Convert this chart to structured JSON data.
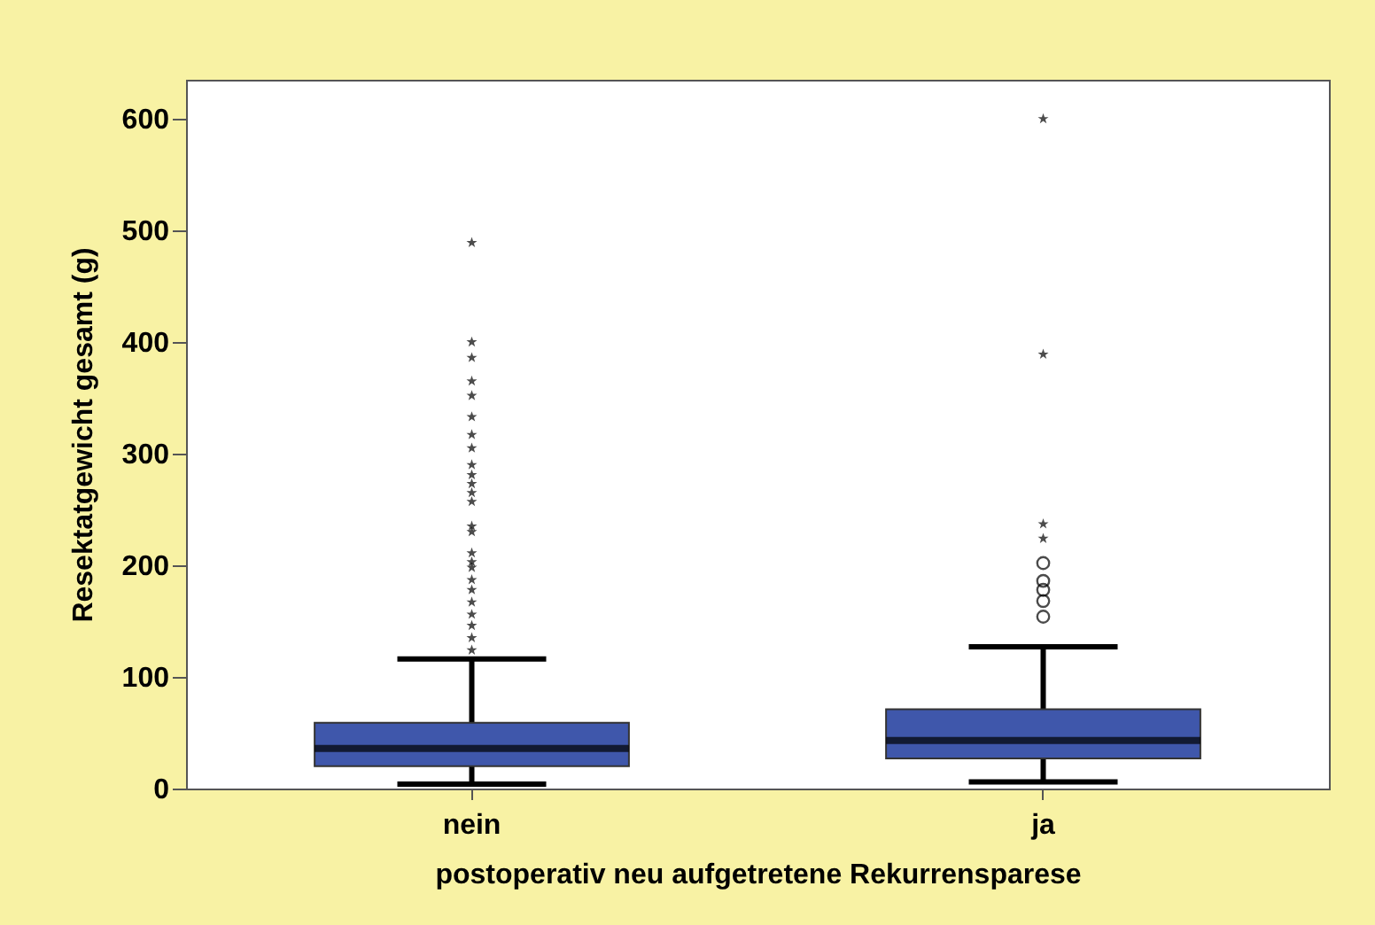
{
  "chart_data": {
    "type": "box",
    "xlabel": "postoperativ neu aufgetretene Rekurrensparese",
    "ylabel": "Resektatgewicht gesamt (g)",
    "categories": [
      "nein",
      "ja"
    ],
    "color": "#3f57ab",
    "ylim": [
      0,
      635
    ],
    "yticks": [
      0,
      100,
      200,
      300,
      400,
      500,
      600
    ],
    "grid": false,
    "boxes": [
      {
        "low": 4,
        "q1": 20,
        "median": 36,
        "q3": 59,
        "high": 116
      },
      {
        "low": 6,
        "q1": 27,
        "median": 43,
        "q3": 71,
        "high": 127,
        "outliers": [
          154,
          168,
          178,
          186,
          202
        ]
      }
    ],
    "series": [
      {
        "type": "scatter",
        "marker": "star",
        "color": "#000000",
        "x": [
          "nein",
          "nein",
          "nein",
          "nein",
          "nein",
          "nein",
          "nein",
          "nein",
          "nein",
          "nein",
          "nein",
          "nein",
          "nein",
          "nein",
          "nein",
          "nein",
          "nein",
          "nein",
          "nein",
          "nein",
          "nein",
          "nein",
          "nein",
          "nein",
          "nein",
          "ja",
          "ja",
          "ja",
          "ja"
        ],
        "values": [
          489,
          400,
          386,
          365,
          352,
          333,
          317,
          305,
          290,
          281,
          273,
          265,
          257,
          235,
          230,
          211,
          203,
          198,
          187,
          178,
          167,
          156,
          146,
          135,
          124,
          600,
          389,
          237,
          224
        ]
      }
    ]
  }
}
